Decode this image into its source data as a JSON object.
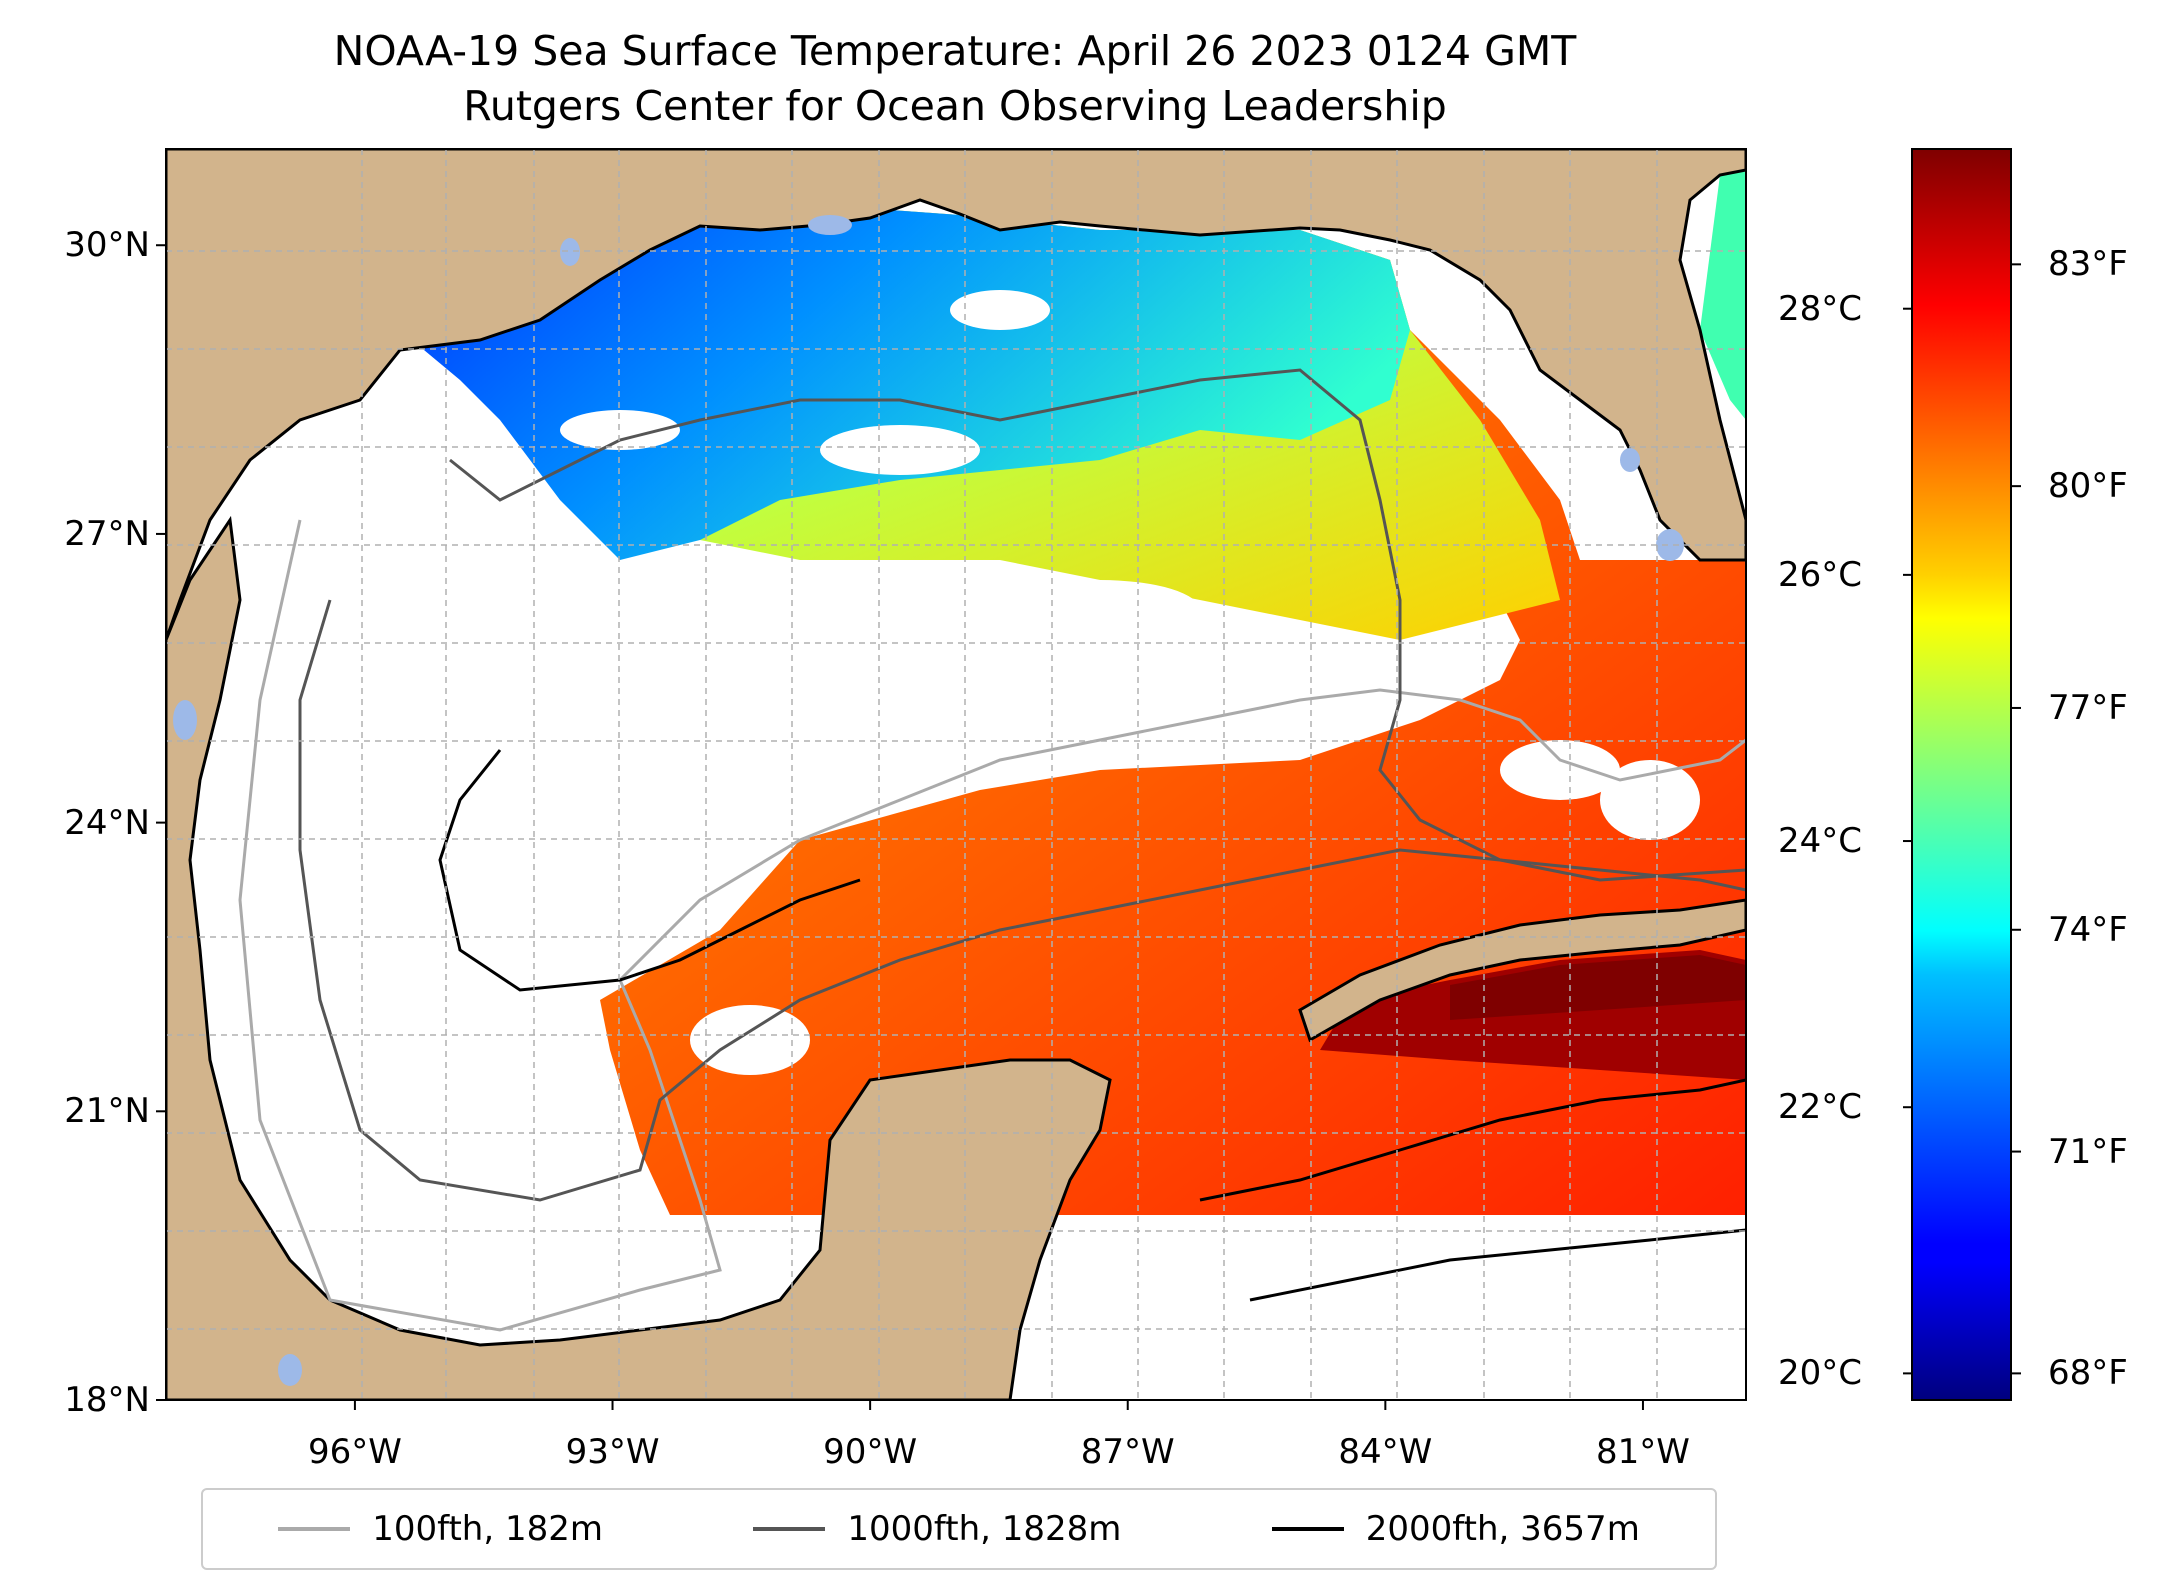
{
  "title": {
    "line1": "NOAA-19 Sea Surface Temperature: April 26 2023 0124 GMT",
    "line2": "Rutgers Center for Ocean Observing Leadership"
  },
  "map": {
    "lon_range": [
      -98.2,
      -79.8
    ],
    "lat_range": [
      18.0,
      31.0
    ],
    "land_color": "#d2b48c",
    "lake_color": "#9db9e8",
    "no_data_color": "#ffffff",
    "lat_ticks": [
      {
        "value": 18,
        "label": "18°N"
      },
      {
        "value": 21,
        "label": "21°N"
      },
      {
        "value": 24,
        "label": "24°N"
      },
      {
        "value": 27,
        "label": "27°N"
      },
      {
        "value": 30,
        "label": "30°N"
      }
    ],
    "lon_ticks": [
      {
        "value": -96,
        "label": "96°W"
      },
      {
        "value": -93,
        "label": "93°W"
      },
      {
        "value": -90,
        "label": "90°W"
      },
      {
        "value": -87,
        "label": "87°W"
      },
      {
        "value": -84,
        "label": "84°W"
      },
      {
        "value": -81,
        "label": "81°W"
      }
    ]
  },
  "colorbar": {
    "colormap": "jet",
    "range_c": [
      19.8,
      29.2
    ],
    "celsius_ticks": [
      {
        "value": 20,
        "label": "20°C"
      },
      {
        "value": 22,
        "label": "22°C"
      },
      {
        "value": 24,
        "label": "24°C"
      },
      {
        "value": 26,
        "label": "26°C"
      },
      {
        "value": 28,
        "label": "28°C"
      }
    ],
    "fahrenheit_ticks": [
      {
        "value": 68,
        "label": "68°F"
      },
      {
        "value": 71,
        "label": "71°F"
      },
      {
        "value": 74,
        "label": "74°F"
      },
      {
        "value": 77,
        "label": "77°F"
      },
      {
        "value": 80,
        "label": "80°F"
      },
      {
        "value": 83,
        "label": "83°F"
      }
    ]
  },
  "legend": {
    "items": [
      {
        "label": "100fth, 182m",
        "color": "#aaaaaa"
      },
      {
        "label": "1000fth, 1828m",
        "color": "#555555"
      },
      {
        "label": "2000fth, 3657m",
        "color": "#000000"
      }
    ]
  }
}
